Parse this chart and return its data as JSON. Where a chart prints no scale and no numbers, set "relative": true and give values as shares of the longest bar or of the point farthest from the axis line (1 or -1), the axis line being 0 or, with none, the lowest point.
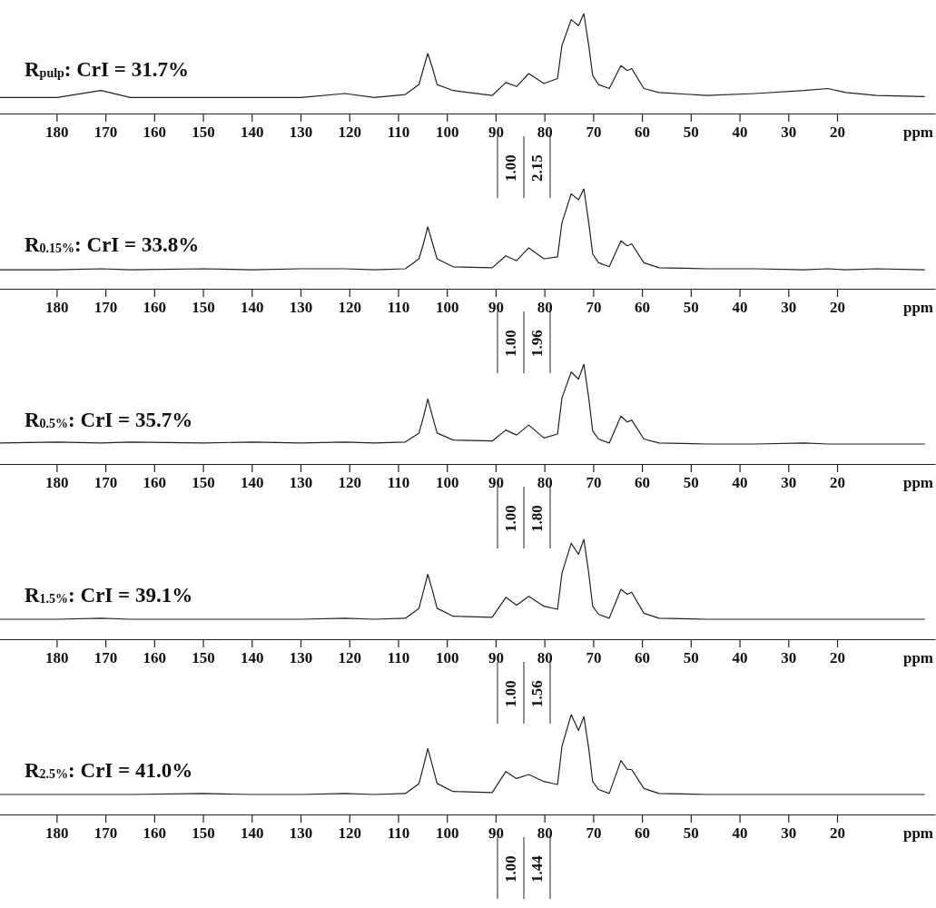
{
  "chart_data": [
    {
      "type": "line",
      "title": "R$_{pulp}$: CrI = 31.7%",
      "xlabel": "ppm",
      "relative": true,
      "color": "#222222",
      "marker": "none",
      "xlim": [
        191.7,
        0
      ],
      "xticks": [
        180,
        170,
        160,
        150,
        140,
        130,
        120,
        110,
        100,
        90,
        80,
        70,
        60,
        50,
        40,
        30,
        20
      ],
      "annotations": [
        "1.00",
        "2.15"
      ],
      "x": [
        191.7,
        180,
        171,
        165,
        150,
        140,
        130,
        121,
        115,
        108.6,
        105.8,
        104.9,
        104,
        103,
        102.1,
        98.8,
        90.8,
        88,
        85.8,
        83.3,
        80.2,
        77.4,
        76.5,
        74.6,
        73.1,
        72,
        71,
        70.2,
        69,
        66.8,
        64.4,
        63.1,
        62.2,
        59.7,
        56.6,
        46.7,
        36.9,
        26.8,
        22,
        18.3,
        12,
        2.1
      ],
      "values": [
        0.16,
        0.16,
        0.23,
        0.16,
        0.16,
        0.16,
        0.16,
        0.2,
        0.16,
        0.19,
        0.29,
        0.45,
        0.6,
        0.45,
        0.29,
        0.23,
        0.18,
        0.31,
        0.27,
        0.4,
        0.3,
        0.35,
        0.68,
        0.94,
        0.88,
        1,
        0.68,
        0.38,
        0.29,
        0.25,
        0.48,
        0.43,
        0.45,
        0.25,
        0.21,
        0.18,
        0.2,
        0.23,
        0.25,
        0.21,
        0.18,
        0.17
      ]
    },
    {
      "type": "line",
      "title": "R$_{0.15%}$: CrI = 33.8%",
      "xlabel": "ppm",
      "relative": true,
      "color": "#222222",
      "marker": "none",
      "xlim": [
        191.7,
        0
      ],
      "xticks": [
        180,
        170,
        160,
        150,
        140,
        130,
        120,
        110,
        100,
        90,
        80,
        70,
        60,
        50,
        40,
        30,
        20
      ],
      "annotations": [
        "1.00",
        "1.96"
      ],
      "x": [
        191.7,
        180,
        171,
        165,
        150,
        140,
        130,
        121,
        115,
        108.6,
        105.8,
        104.9,
        104,
        103,
        102.1,
        98.8,
        90.8,
        88,
        85.8,
        83.3,
        80.2,
        77.4,
        76.5,
        74.6,
        73.1,
        72,
        71,
        70.2,
        69,
        66.8,
        64.4,
        63.1,
        62.2,
        59.7,
        56.6,
        46.7,
        36.9,
        26.8,
        22,
        18.3,
        12,
        2.1
      ],
      "values": [
        0.19,
        0.19,
        0.2,
        0.19,
        0.2,
        0.19,
        0.2,
        0.2,
        0.19,
        0.2,
        0.3,
        0.45,
        0.62,
        0.45,
        0.3,
        0.22,
        0.21,
        0.33,
        0.28,
        0.41,
        0.3,
        0.32,
        0.66,
        0.95,
        0.89,
        1,
        0.66,
        0.35,
        0.26,
        0.22,
        0.48,
        0.43,
        0.45,
        0.26,
        0.21,
        0.2,
        0.2,
        0.19,
        0.2,
        0.19,
        0.2,
        0.19
      ]
    },
    {
      "type": "line",
      "title": "R$_{0.5%}$: CrI = 35.7%",
      "xlabel": "ppm",
      "relative": true,
      "color": "#222222",
      "marker": "none",
      "xlim": [
        191.7,
        0
      ],
      "xticks": [
        180,
        170,
        160,
        150,
        140,
        130,
        120,
        110,
        100,
        90,
        80,
        70,
        60,
        50,
        40,
        30,
        20
      ],
      "annotations": [
        "1.00",
        "1.80"
      ],
      "x": [
        191.7,
        180,
        171,
        165,
        150,
        140,
        130,
        121,
        115,
        108.6,
        105.8,
        104.9,
        104,
        103,
        102.1,
        98.8,
        90.8,
        88,
        85.8,
        83.3,
        80.2,
        77.4,
        76.5,
        74.6,
        73.1,
        72,
        71,
        70.2,
        69,
        66.8,
        64.4,
        63.1,
        62.2,
        59.7,
        56.6,
        46.7,
        36.9,
        26.8,
        22,
        18.3,
        12,
        2.1
      ],
      "values": [
        0.21,
        0.22,
        0.21,
        0.22,
        0.21,
        0.22,
        0.21,
        0.22,
        0.21,
        0.22,
        0.31,
        0.47,
        0.65,
        0.47,
        0.31,
        0.24,
        0.23,
        0.34,
        0.29,
        0.39,
        0.26,
        0.3,
        0.66,
        0.92,
        0.85,
        1,
        0.66,
        0.33,
        0.25,
        0.21,
        0.48,
        0.42,
        0.44,
        0.25,
        0.21,
        0.2,
        0.2,
        0.21,
        0.2,
        0.2,
        0.2,
        0.2
      ]
    },
    {
      "type": "line",
      "title": "R$_{1.5%}$: CrI = 39.1%",
      "xlabel": "ppm",
      "relative": true,
      "color": "#222222",
      "marker": "none",
      "xlim": [
        191.7,
        0
      ],
      "xticks": [
        180,
        170,
        160,
        150,
        140,
        130,
        120,
        110,
        100,
        90,
        80,
        70,
        60,
        50,
        40,
        30,
        20
      ],
      "annotations": [
        "1.00",
        "1.56"
      ],
      "x": [
        191.7,
        180,
        171,
        165,
        150,
        140,
        130,
        121,
        115,
        108.6,
        105.8,
        104.9,
        104,
        103,
        102.1,
        98.8,
        90.8,
        88,
        85.8,
        83.3,
        80.2,
        77.4,
        76.5,
        74.6,
        73.1,
        72,
        71,
        70.2,
        69,
        66.8,
        64.4,
        63.1,
        62.2,
        59.7,
        56.6,
        46.7,
        36.9,
        26.8,
        22,
        18.3,
        12,
        2.1
      ],
      "values": [
        0.2,
        0.2,
        0.21,
        0.2,
        0.2,
        0.2,
        0.2,
        0.21,
        0.2,
        0.21,
        0.31,
        0.48,
        0.65,
        0.48,
        0.31,
        0.23,
        0.22,
        0.42,
        0.34,
        0.43,
        0.33,
        0.3,
        0.66,
        0.96,
        0.85,
        1,
        0.66,
        0.33,
        0.25,
        0.21,
        0.5,
        0.45,
        0.47,
        0.26,
        0.21,
        0.2,
        0.2,
        0.2,
        0.2,
        0.2,
        0.2,
        0.2
      ]
    },
    {
      "type": "line",
      "title": "R$_{2.5%}$: CrI = 41.0%",
      "xlabel": "ppm",
      "relative": true,
      "color": "#222222",
      "marker": "none",
      "xlim": [
        191.7,
        0
      ],
      "xticks": [
        180,
        170,
        160,
        150,
        140,
        130,
        120,
        110,
        100,
        90,
        80,
        70,
        60,
        50,
        40,
        30,
        20
      ],
      "annotations": [
        "1.00",
        "1.44"
      ],
      "x": [
        191.7,
        180,
        171,
        165,
        150,
        140,
        130,
        121,
        115,
        108.6,
        105.8,
        104.9,
        104,
        103,
        102.1,
        98.8,
        90.8,
        88,
        85.8,
        83.3,
        80.2,
        77.4,
        76.5,
        74.6,
        73.1,
        72,
        71,
        70.2,
        69,
        66.8,
        64.4,
        63.1,
        62.2,
        59.7,
        56.6,
        46.7,
        36.9,
        26.8,
        22,
        18.3,
        12,
        2.1
      ],
      "values": [
        0.2,
        0.2,
        0.2,
        0.2,
        0.21,
        0.2,
        0.2,
        0.21,
        0.2,
        0.21,
        0.31,
        0.48,
        0.66,
        0.48,
        0.31,
        0.23,
        0.22,
        0.43,
        0.36,
        0.4,
        0.33,
        0.3,
        0.68,
        1,
        0.84,
        0.98,
        0.66,
        0.33,
        0.25,
        0.21,
        0.54,
        0.45,
        0.45,
        0.26,
        0.21,
        0.2,
        0.2,
        0.2,
        0.2,
        0.2,
        0.2,
        0.2
      ]
    }
  ]
}
